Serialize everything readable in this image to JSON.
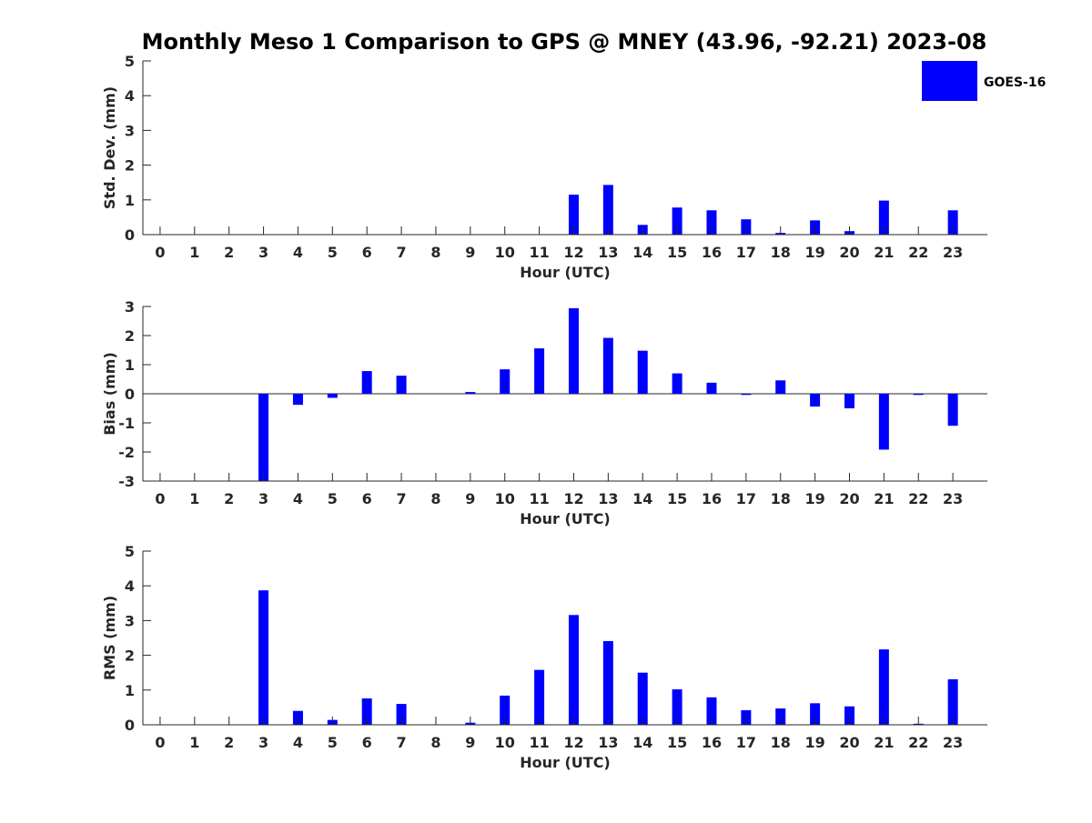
{
  "title": "Monthly Meso 1 Comparison to GPS @ MNEY (43.96, -92.21) 2023-08",
  "legend": {
    "label": "GOES-16",
    "placement": "top-right"
  },
  "colors": {
    "bar": "#0000ff",
    "axis": "#262626",
    "background": "#ffffff"
  },
  "chart_data": [
    {
      "type": "bar",
      "title": "",
      "xlabel": "Hour (UTC)",
      "ylabel": "Std. Dev. (mm)",
      "ylim": [
        0,
        5
      ],
      "yticks": [
        0,
        1,
        2,
        3,
        4,
        5
      ],
      "grid": false,
      "categories": [
        "0",
        "1",
        "2",
        "3",
        "4",
        "5",
        "6",
        "7",
        "8",
        "9",
        "10",
        "11",
        "12",
        "13",
        "14",
        "15",
        "16",
        "17",
        "18",
        "19",
        "20",
        "21",
        "22",
        "23"
      ],
      "series": [
        {
          "name": "GOES-16",
          "values": [
            0,
            0,
            0,
            0,
            0,
            0,
            0,
            0,
            0,
            0,
            0,
            0,
            1.15,
            1.43,
            0.28,
            0.78,
            0.7,
            0.44,
            0.05,
            0.41,
            0.1,
            0.98,
            0,
            0.7
          ]
        }
      ]
    },
    {
      "type": "bar",
      "title": "",
      "xlabel": "Hour (UTC)",
      "ylabel": "Bias (mm)",
      "ylim": [
        -3,
        3
      ],
      "yticks": [
        -3,
        -2,
        -1,
        0,
        1,
        2,
        3
      ],
      "grid": false,
      "categories": [
        "0",
        "1",
        "2",
        "3",
        "4",
        "5",
        "6",
        "7",
        "8",
        "9",
        "10",
        "11",
        "12",
        "13",
        "14",
        "15",
        "16",
        "17",
        "18",
        "19",
        "20",
        "21",
        "22",
        "23"
      ],
      "series": [
        {
          "name": "GOES-16",
          "values": [
            0,
            0,
            0,
            -3.0,
            -0.38,
            -0.14,
            0.78,
            0.62,
            0,
            0.06,
            0.84,
            1.56,
            2.94,
            1.92,
            1.48,
            0.7,
            0.38,
            -0.04,
            0.46,
            -0.44,
            -0.5,
            -1.92,
            -0.04,
            -1.1
          ]
        }
      ]
    },
    {
      "type": "bar",
      "title": "",
      "xlabel": "Hour (UTC)",
      "ylabel": "RMS (mm)",
      "ylim": [
        0,
        5
      ],
      "yticks": [
        0,
        1,
        2,
        3,
        4,
        5
      ],
      "grid": false,
      "categories": [
        "0",
        "1",
        "2",
        "3",
        "4",
        "5",
        "6",
        "7",
        "8",
        "9",
        "10",
        "11",
        "12",
        "13",
        "14",
        "15",
        "16",
        "17",
        "18",
        "19",
        "20",
        "21",
        "22",
        "23"
      ],
      "series": [
        {
          "name": "GOES-16",
          "values": [
            0,
            0,
            0,
            3.87,
            0.4,
            0.14,
            0.76,
            0.6,
            0,
            0.06,
            0.84,
            1.58,
            3.16,
            2.41,
            1.5,
            1.02,
            0.79,
            0.42,
            0.47,
            0.62,
            0.53,
            2.17,
            0.03,
            1.31
          ]
        }
      ]
    }
  ]
}
